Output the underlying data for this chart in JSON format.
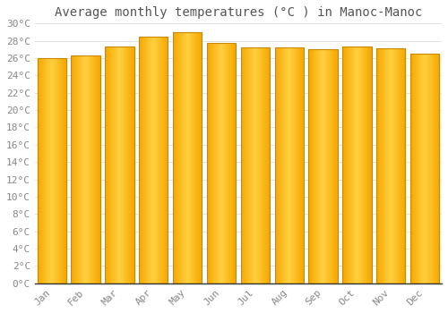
{
  "months": [
    "Jan",
    "Feb",
    "Mar",
    "Apr",
    "May",
    "Jun",
    "Jul",
    "Aug",
    "Sep",
    "Oct",
    "Nov",
    "Dec"
  ],
  "values": [
    26.0,
    26.3,
    27.3,
    28.5,
    29.0,
    27.8,
    27.2,
    27.2,
    27.0,
    27.3,
    27.1,
    26.5
  ],
  "title": "Average monthly temperatures (°C ) in Manoc-Manoc",
  "ylim": [
    0,
    30
  ],
  "ytick_step": 2,
  "bar_color_left": "#F5A800",
  "bar_color_center": "#FFD040",
  "bar_color_right": "#F5A800",
  "bar_edge_color": "#C88800",
  "background_color": "#FFFFFF",
  "grid_color": "#DDDDDD",
  "title_fontsize": 10,
  "tick_fontsize": 8,
  "title_color": "#555555",
  "tick_color": "#888888",
  "title_font": "monospace",
  "bar_width": 0.85
}
